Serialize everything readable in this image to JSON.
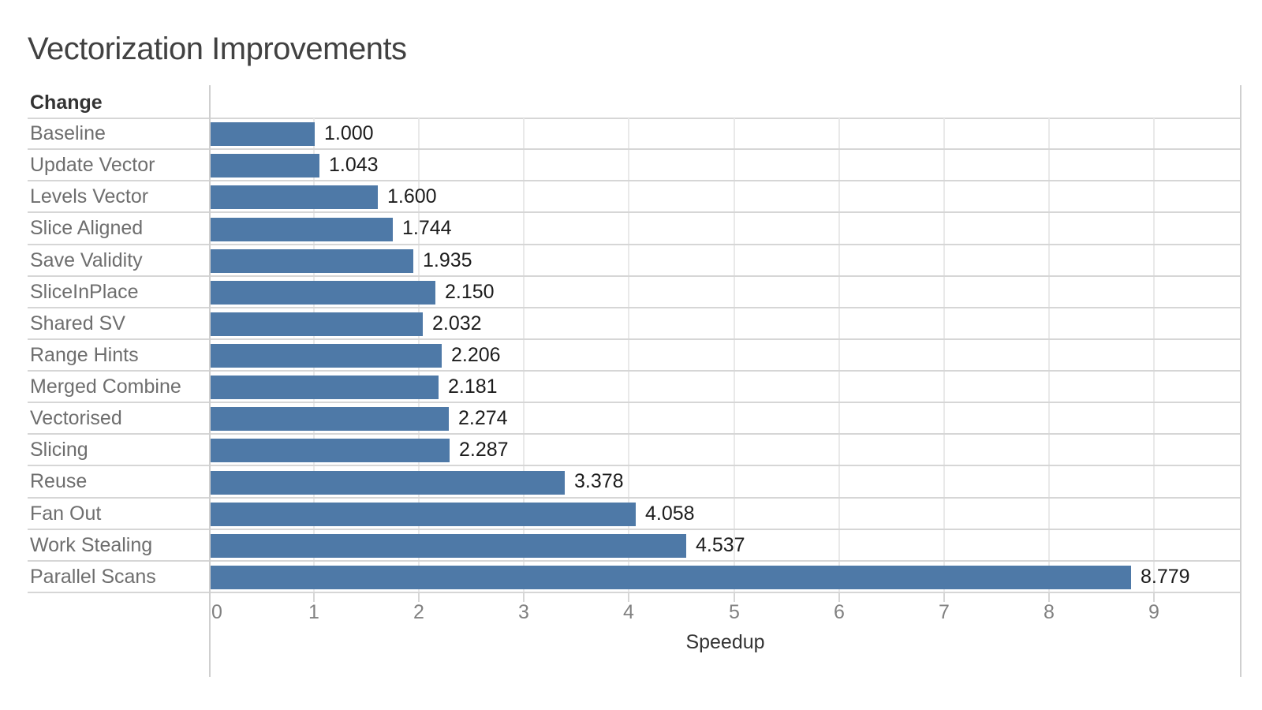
{
  "title": "Vectorization Improvements",
  "row_header": "Change",
  "axis": {
    "label": "Speedup",
    "tick_labels": [
      "0",
      "1",
      "2",
      "3",
      "4",
      "5",
      "6",
      "7",
      "8",
      "9"
    ],
    "min": 0,
    "max": 9.83
  },
  "colors": {
    "bar": "#4e79a7",
    "value_text": "#1c1c1c",
    "category_text": "#6e6e6e",
    "tick_text": "#818181",
    "gridline": "#e9e9e9",
    "row_line": "#d6d6d6",
    "border": "#cfcfcf"
  },
  "chart_data": {
    "type": "bar",
    "orientation": "horizontal",
    "title": "Vectorization Improvements",
    "xlabel": "Speedup",
    "ylabel": "Change",
    "xlim": [
      0,
      9.83
    ],
    "grid": true,
    "categories": [
      "Baseline",
      "Update Vector",
      "Levels Vector",
      "Slice Aligned",
      "Save Validity",
      "SliceInPlace",
      "Shared SV",
      "Range Hints",
      "Merged Combine",
      "Vectorised",
      "Slicing",
      "Reuse",
      "Fan Out",
      "Work Stealing",
      "Parallel Scans"
    ],
    "values": [
      1.0,
      1.043,
      1.6,
      1.744,
      1.935,
      2.15,
      2.032,
      2.206,
      2.181,
      2.274,
      2.287,
      3.378,
      4.058,
      4.537,
      8.779
    ],
    "value_labels": [
      "1.000",
      "1.043",
      "1.600",
      "1.744",
      "1.935",
      "2.150",
      "2.032",
      "2.206",
      "2.181",
      "2.274",
      "2.287",
      "3.378",
      "4.058",
      "4.537",
      "8.779"
    ],
    "bar_color": "#4e79a7"
  }
}
